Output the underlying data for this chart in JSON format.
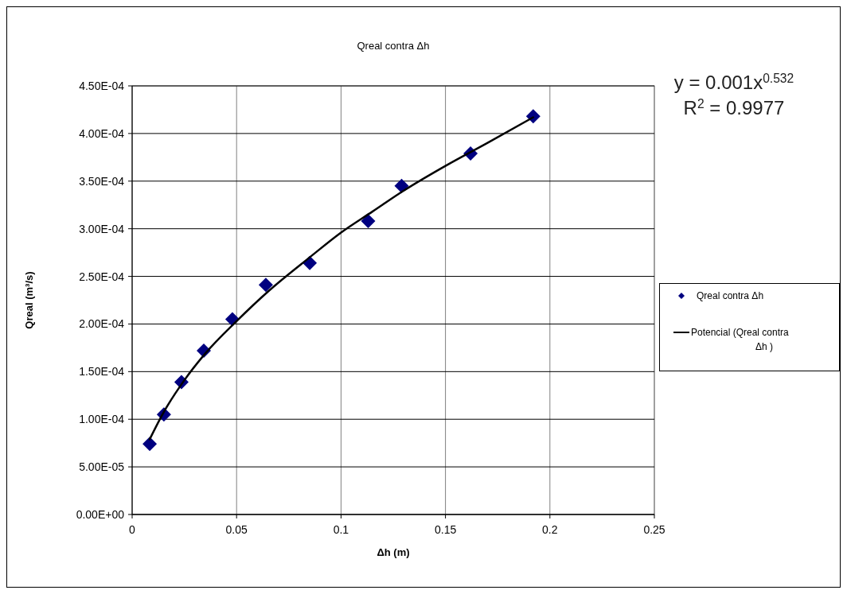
{
  "chart_data": {
    "type": "scatter",
    "title": "Qreal contra Δh",
    "xlabel": "Δh (m)",
    "ylabel": "Qreal (m³/s)",
    "annotations": [
      "y = 0.001x$^{0.532}$",
      "R$^{2}$ = 0.9977"
    ],
    "xlim": [
      0,
      0.25
    ],
    "xticks": [
      0,
      0.05,
      0.1,
      0.15,
      0.2,
      0.25
    ],
    "ylim": [
      0,
      0.00045
    ],
    "yticks": [
      {
        "value": 0,
        "label": "0.00E+00"
      },
      {
        "value": 5e-05,
        "label": "5.00E-05"
      },
      {
        "value": 0.0001,
        "label": "1.00E-04"
      },
      {
        "value": 0.00015,
        "label": "1.50E-04"
      },
      {
        "value": 0.0002,
        "label": "2.00E-04"
      },
      {
        "value": 0.00025,
        "label": "2.50E-04"
      },
      {
        "value": 0.0003,
        "label": "3.00E-04"
      },
      {
        "value": 0.00035,
        "label": "3.50E-04"
      },
      {
        "value": 0.0004,
        "label": "4.00E-04"
      },
      {
        "value": 0.00045,
        "label": "4.50E-04"
      }
    ],
    "grid": true,
    "legend": "right",
    "series": [
      {
        "name": "Qreal contra  Δh",
        "marker": "diamond",
        "color": "#000080",
        "x": [
          0.0084,
          0.0152,
          0.0236,
          0.0343,
          0.048,
          0.064,
          0.085,
          0.113,
          0.129,
          0.162,
          0.192
        ],
        "values": [
          7.4e-05,
          0.000105,
          0.000139,
          0.000172,
          0.000205,
          0.000241,
          0.000264,
          0.000308,
          0.000345,
          0.000379,
          0.000418
        ]
      },
      {
        "name": "Potencial (Qreal contra Δh )",
        "type": "line",
        "marker": "none",
        "line_style": "solid",
        "color": "#000000",
        "x": [
          0.0084,
          0.015,
          0.025,
          0.035,
          0.05,
          0.065,
          0.085,
          0.1,
          0.115,
          0.13,
          0.15,
          0.17,
          0.192
        ],
        "values": [
          7.9e-05,
          0.000107,
          0.000141,
          0.000169,
          0.000203,
          0.000234,
          0.00027,
          0.000296,
          0.000318,
          0.00034,
          0.000366,
          0.00039,
          0.000417
        ]
      }
    ]
  }
}
